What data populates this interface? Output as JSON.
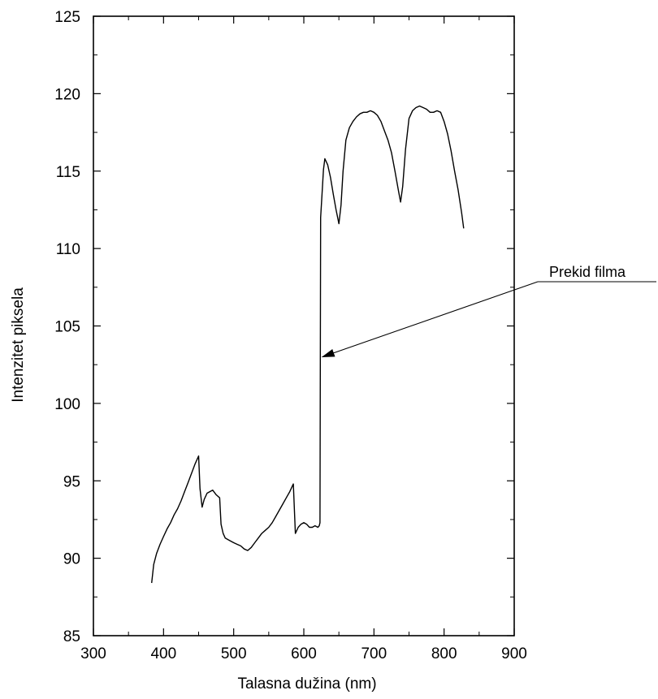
{
  "chart_data": {
    "type": "line",
    "xlabel": "Talasna dužina (nm)",
    "ylabel": "Intenzitet piksela",
    "xlim": [
      300,
      900
    ],
    "ylim": [
      85,
      125
    ],
    "x_ticks": [
      300,
      400,
      500,
      600,
      700,
      800,
      900
    ],
    "y_ticks": [
      85,
      90,
      95,
      100,
      105,
      110,
      115,
      120,
      125
    ],
    "x_tick_labels": [
      "300",
      "400",
      "500",
      "600",
      "700",
      "800",
      "900"
    ],
    "y_tick_labels": [
      "85",
      "90",
      "95",
      "100",
      "105",
      "110",
      "115",
      "120",
      "125"
    ],
    "grid": false,
    "series": [
      {
        "color": "#000000",
        "x": [
          383,
          386,
          390,
          395,
          400,
          405,
          410,
          415,
          420,
          425,
          430,
          435,
          440,
          445,
          450,
          452,
          455,
          458,
          462,
          466,
          470,
          475,
          480,
          482,
          485,
          488,
          492,
          496,
          500,
          505,
          510,
          515,
          520,
          525,
          530,
          535,
          540,
          545,
          550,
          555,
          560,
          565,
          570,
          575,
          580,
          583,
          585,
          588,
          592,
          596,
          600,
          604,
          608,
          612,
          616,
          620,
          622,
          623,
          624,
          626,
          628,
          630,
          634,
          638,
          642,
          646,
          650,
          653,
          656,
          660,
          665,
          670,
          675,
          680,
          685,
          690,
          695,
          700,
          705,
          710,
          715,
          720,
          725,
          730,
          735,
          738,
          741,
          745,
          750,
          755,
          760,
          765,
          770,
          775,
          780,
          785,
          790,
          795,
          800,
          805,
          810,
          815,
          820,
          825,
          828
        ],
        "y": [
          88.4,
          89.6,
          90.3,
          90.9,
          91.4,
          91.9,
          92.3,
          92.8,
          93.2,
          93.7,
          94.3,
          94.9,
          95.5,
          96.1,
          96.6,
          94.5,
          93.3,
          93.8,
          94.2,
          94.3,
          94.4,
          94.1,
          93.9,
          92.2,
          91.6,
          91.3,
          91.2,
          91.1,
          91.0,
          90.9,
          90.8,
          90.6,
          90.5,
          90.7,
          91.0,
          91.3,
          91.6,
          91.8,
          92.0,
          92.3,
          92.7,
          93.1,
          93.5,
          93.9,
          94.3,
          94.6,
          94.8,
          91.6,
          92.0,
          92.2,
          92.3,
          92.2,
          92.0,
          92.0,
          92.1,
          92.0,
          92.1,
          92.3,
          112.0,
          113.5,
          115.1,
          115.8,
          115.4,
          114.6,
          113.5,
          112.5,
          111.6,
          112.8,
          115.0,
          117.0,
          117.8,
          118.2,
          118.5,
          118.7,
          118.8,
          118.8,
          118.9,
          118.8,
          118.6,
          118.2,
          117.6,
          117.0,
          116.2,
          115.0,
          113.7,
          113.0,
          114.0,
          116.4,
          118.4,
          118.9,
          119.1,
          119.2,
          119.1,
          119.0,
          118.8,
          118.8,
          118.9,
          118.8,
          118.2,
          117.4,
          116.3,
          115.0,
          113.8,
          112.3,
          111.3
        ]
      }
    ],
    "annotations": [
      {
        "text": "Prekid filma",
        "target_x": 624,
        "target_y": 103.0
      }
    ]
  }
}
